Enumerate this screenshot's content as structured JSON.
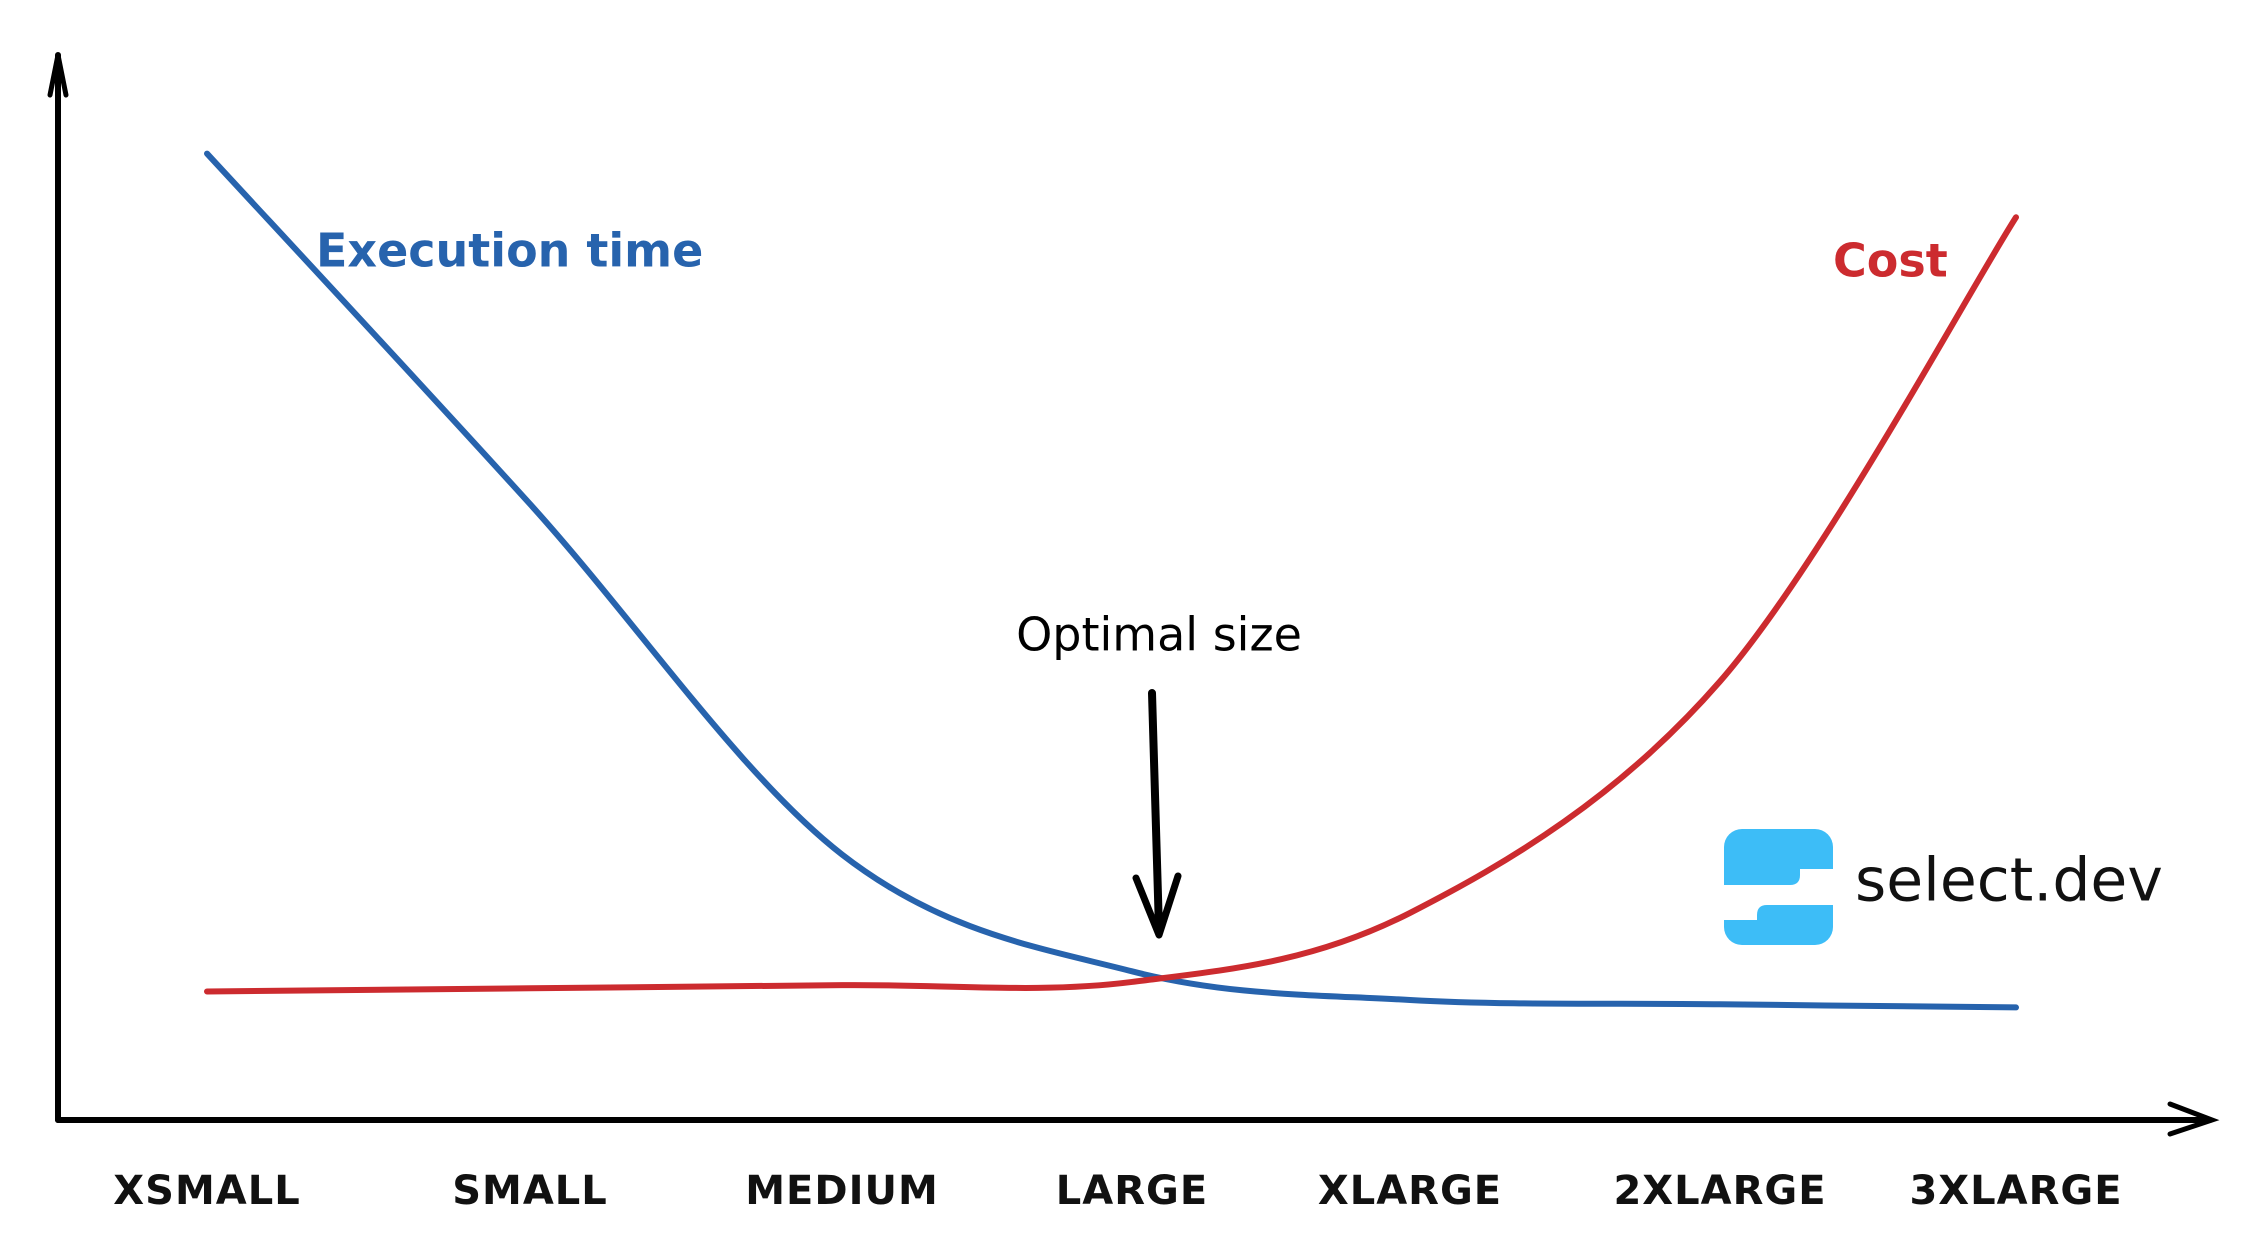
{
  "chart_data": {
    "type": "line",
    "categories": [
      "XSMALL",
      "SMALL",
      "MEDIUM",
      "LARGE",
      "XLARGE",
      "2XLARGE",
      "3XLARGE"
    ],
    "series": [
      {
        "name": "Execution time",
        "color": "#2763ad",
        "values": [
          91,
          58,
          25,
          14,
          11.3,
          10.9,
          10.6
        ]
      },
      {
        "name": "Cost",
        "color": "#cc2b2f",
        "values": [
          12.1,
          12.4,
          12.7,
          13,
          19.5,
          41.3,
          85
        ]
      }
    ],
    "ylim": [
      0,
      100
    ],
    "annotation": "Optimal size",
    "brand": "select.dev"
  }
}
